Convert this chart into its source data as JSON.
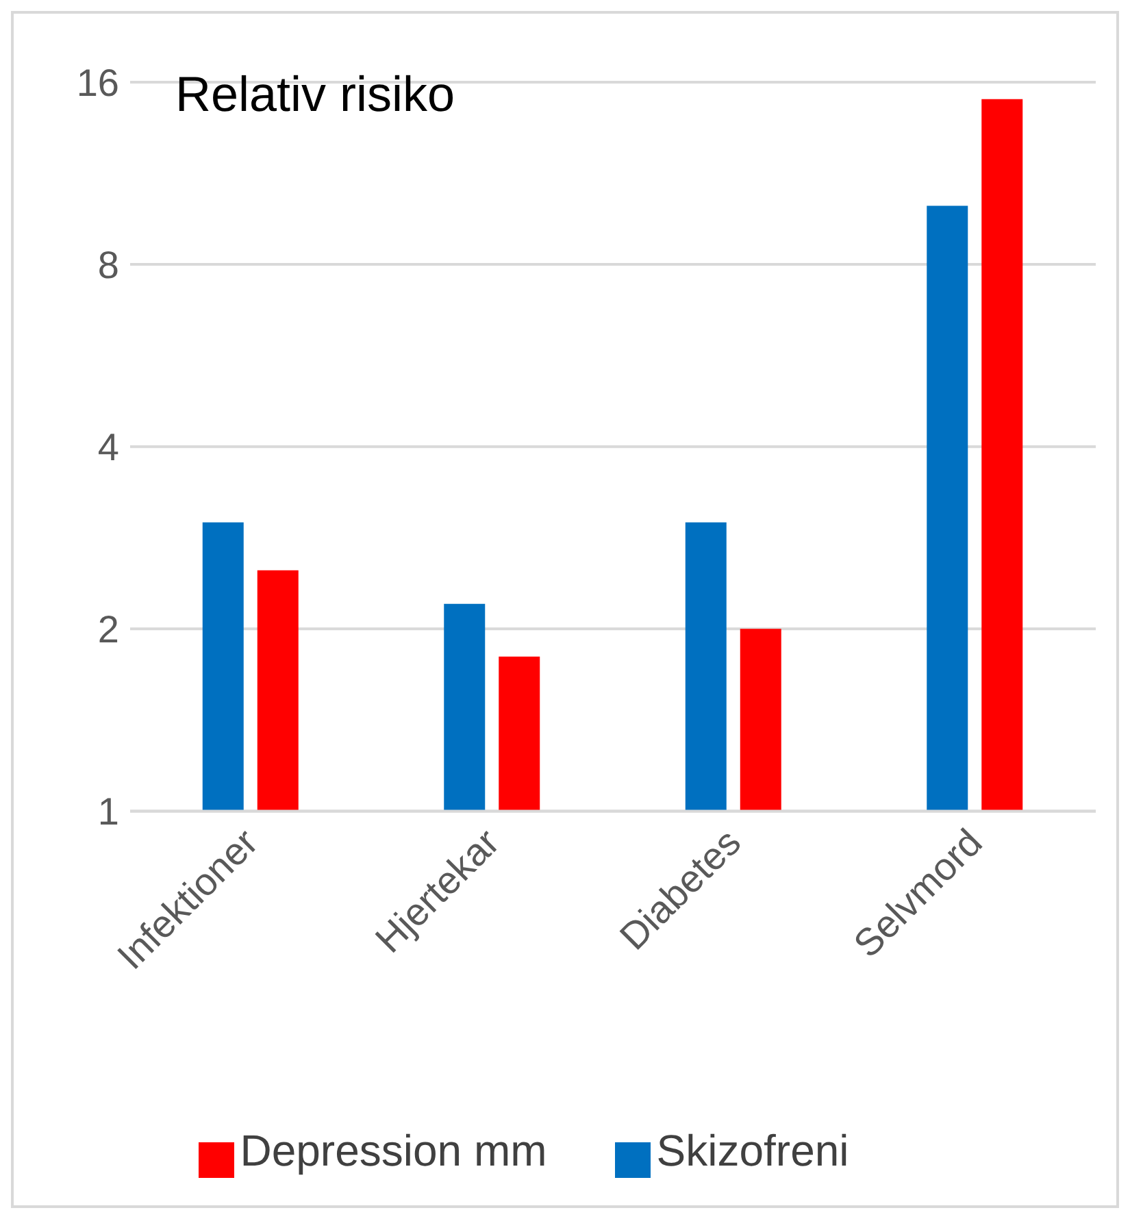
{
  "chart_data": {
    "type": "bar",
    "title": "Relativ risiko",
    "categories": [
      "Infektioner",
      "Hjertekar",
      "Diabetes",
      "Selvmord"
    ],
    "series": [
      {
        "name": "Skizofreni",
        "color": "#0070c0",
        "values": [
          3,
          2.2,
          3,
          10
        ]
      },
      {
        "name": "Depression mm",
        "color": "#ff0000",
        "values": [
          2.5,
          1.8,
          2,
          15
        ]
      }
    ],
    "log": "y",
    "ylim": [
      1,
      16
    ],
    "yticks": [
      1,
      2,
      4,
      8,
      16
    ],
    "grid": "y",
    "legend": "bottom"
  }
}
